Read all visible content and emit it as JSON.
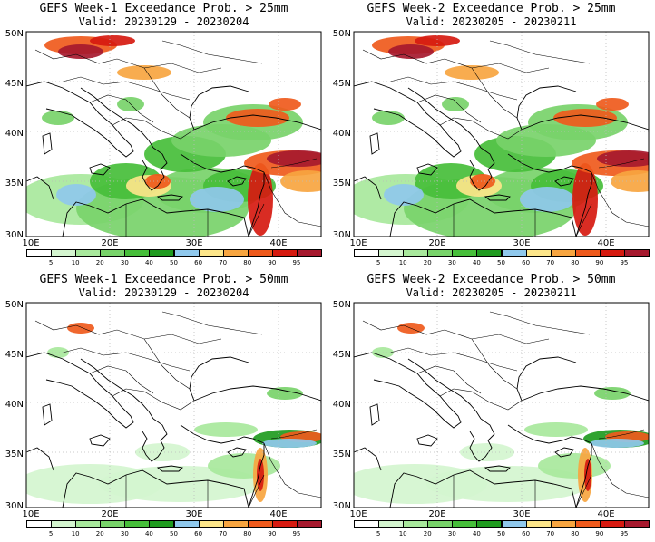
{
  "panels": [
    {
      "title": "GEFS Week-1 Exceedance Prob. > 25mm",
      "valid": "Valid: 20230129 - 20230204",
      "threshold": 25
    },
    {
      "title": "GEFS Week-2 Exceedance Prob. > 25mm",
      "valid": "Valid: 20230205 - 20230211",
      "threshold": 25
    },
    {
      "title": "GEFS Week-1 Exceedance Prob. > 50mm",
      "valid": "Valid: 20230129 - 20230204",
      "threshold": 50
    },
    {
      "title": "GEFS Week-2 Exceedance Prob. > 50mm",
      "valid": "Valid: 20230205 - 20230211",
      "threshold": 50
    }
  ],
  "lat_labels": [
    "50N",
    "45N",
    "40N",
    "35N",
    "30N"
  ],
  "lon_labels": [
    "10E",
    "20E",
    "30E",
    "40E"
  ],
  "colorbar": {
    "labels": [
      "5",
      "10",
      "20",
      "30",
      "40",
      "50",
      "60",
      "70",
      "80",
      "90",
      "95"
    ],
    "colors": [
      "#ffffff",
      "#d4f5cf",
      "#a8e89c",
      "#78d36a",
      "#46be3a",
      "#1f9b1f",
      "#8fc8ec",
      "#fde68a",
      "#f7a540",
      "#ef5a1c",
      "#d61a10",
      "#a6192e"
    ]
  }
}
